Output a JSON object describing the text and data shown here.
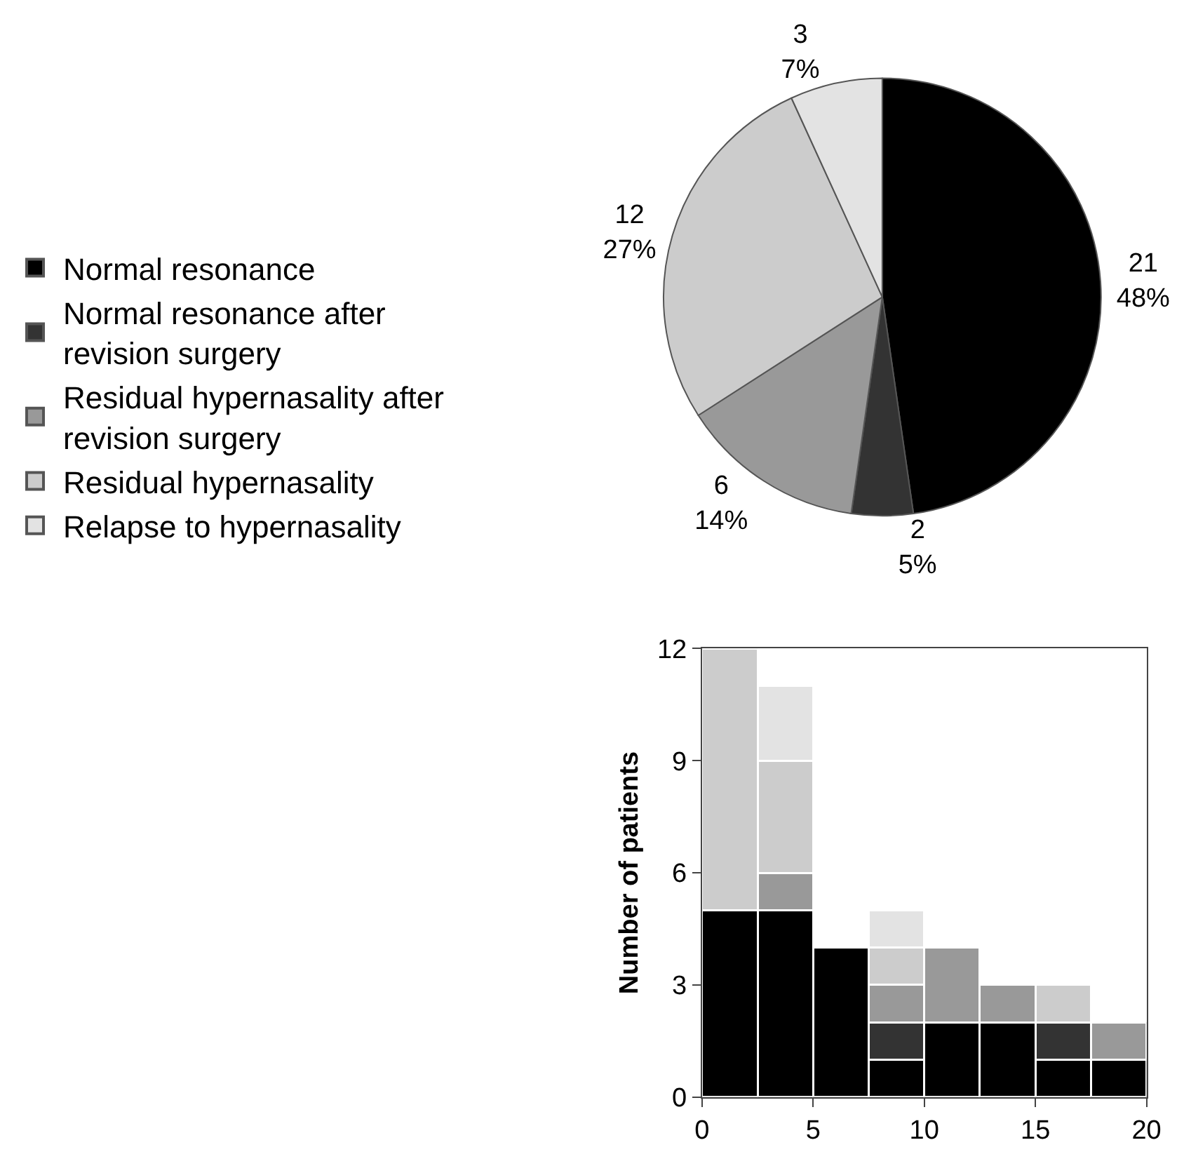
{
  "chart_data": [
    {
      "type": "pie",
      "categories": [
        "Normal resonance",
        "Normal resonance after revision surgery",
        "Residual hypernasality after revision surgery",
        "Residual hypernasality",
        "Relapse to hypernasality"
      ],
      "values": [
        21,
        2,
        6,
        12,
        3
      ],
      "value_labels": [
        "21\n48%",
        "2\n5%",
        "6\n14%",
        "12\n27%",
        "3\n7%"
      ],
      "colors": [
        "#000000",
        "#333333",
        "#999999",
        "#cccccc",
        "#e3e3e3"
      ],
      "legend": "left"
    },
    {
      "type": "bar",
      "x": [
        1.25,
        3.75,
        6.25,
        8.75,
        11.25,
        13.75,
        16.25,
        18.75
      ],
      "stacked": true,
      "series": [
        {
          "color": "#000000",
          "values": [
            5,
            5,
            4,
            1,
            2,
            2,
            1,
            1
          ]
        },
        {
          "color": "#333333",
          "values": [
            null,
            null,
            null,
            1,
            null,
            null,
            1,
            null
          ]
        },
        {
          "color": "#999999",
          "values": [
            null,
            1,
            null,
            1,
            2,
            1,
            null,
            1
          ]
        },
        {
          "color": "#cccccc",
          "values": [
            7,
            3,
            null,
            1,
            null,
            null,
            1,
            null
          ]
        },
        {
          "color": "#e3e3e3",
          "values": [
            null,
            2,
            null,
            1,
            null,
            null,
            null,
            null
          ]
        }
      ],
      "ylabel": "Number of patients",
      "xlim": [
        0,
        20
      ],
      "xticks": [
        0,
        5,
        10,
        15,
        20
      ],
      "ylim": [
        0,
        12
      ],
      "yticks": [
        0,
        3,
        6,
        9,
        12
      ]
    }
  ]
}
